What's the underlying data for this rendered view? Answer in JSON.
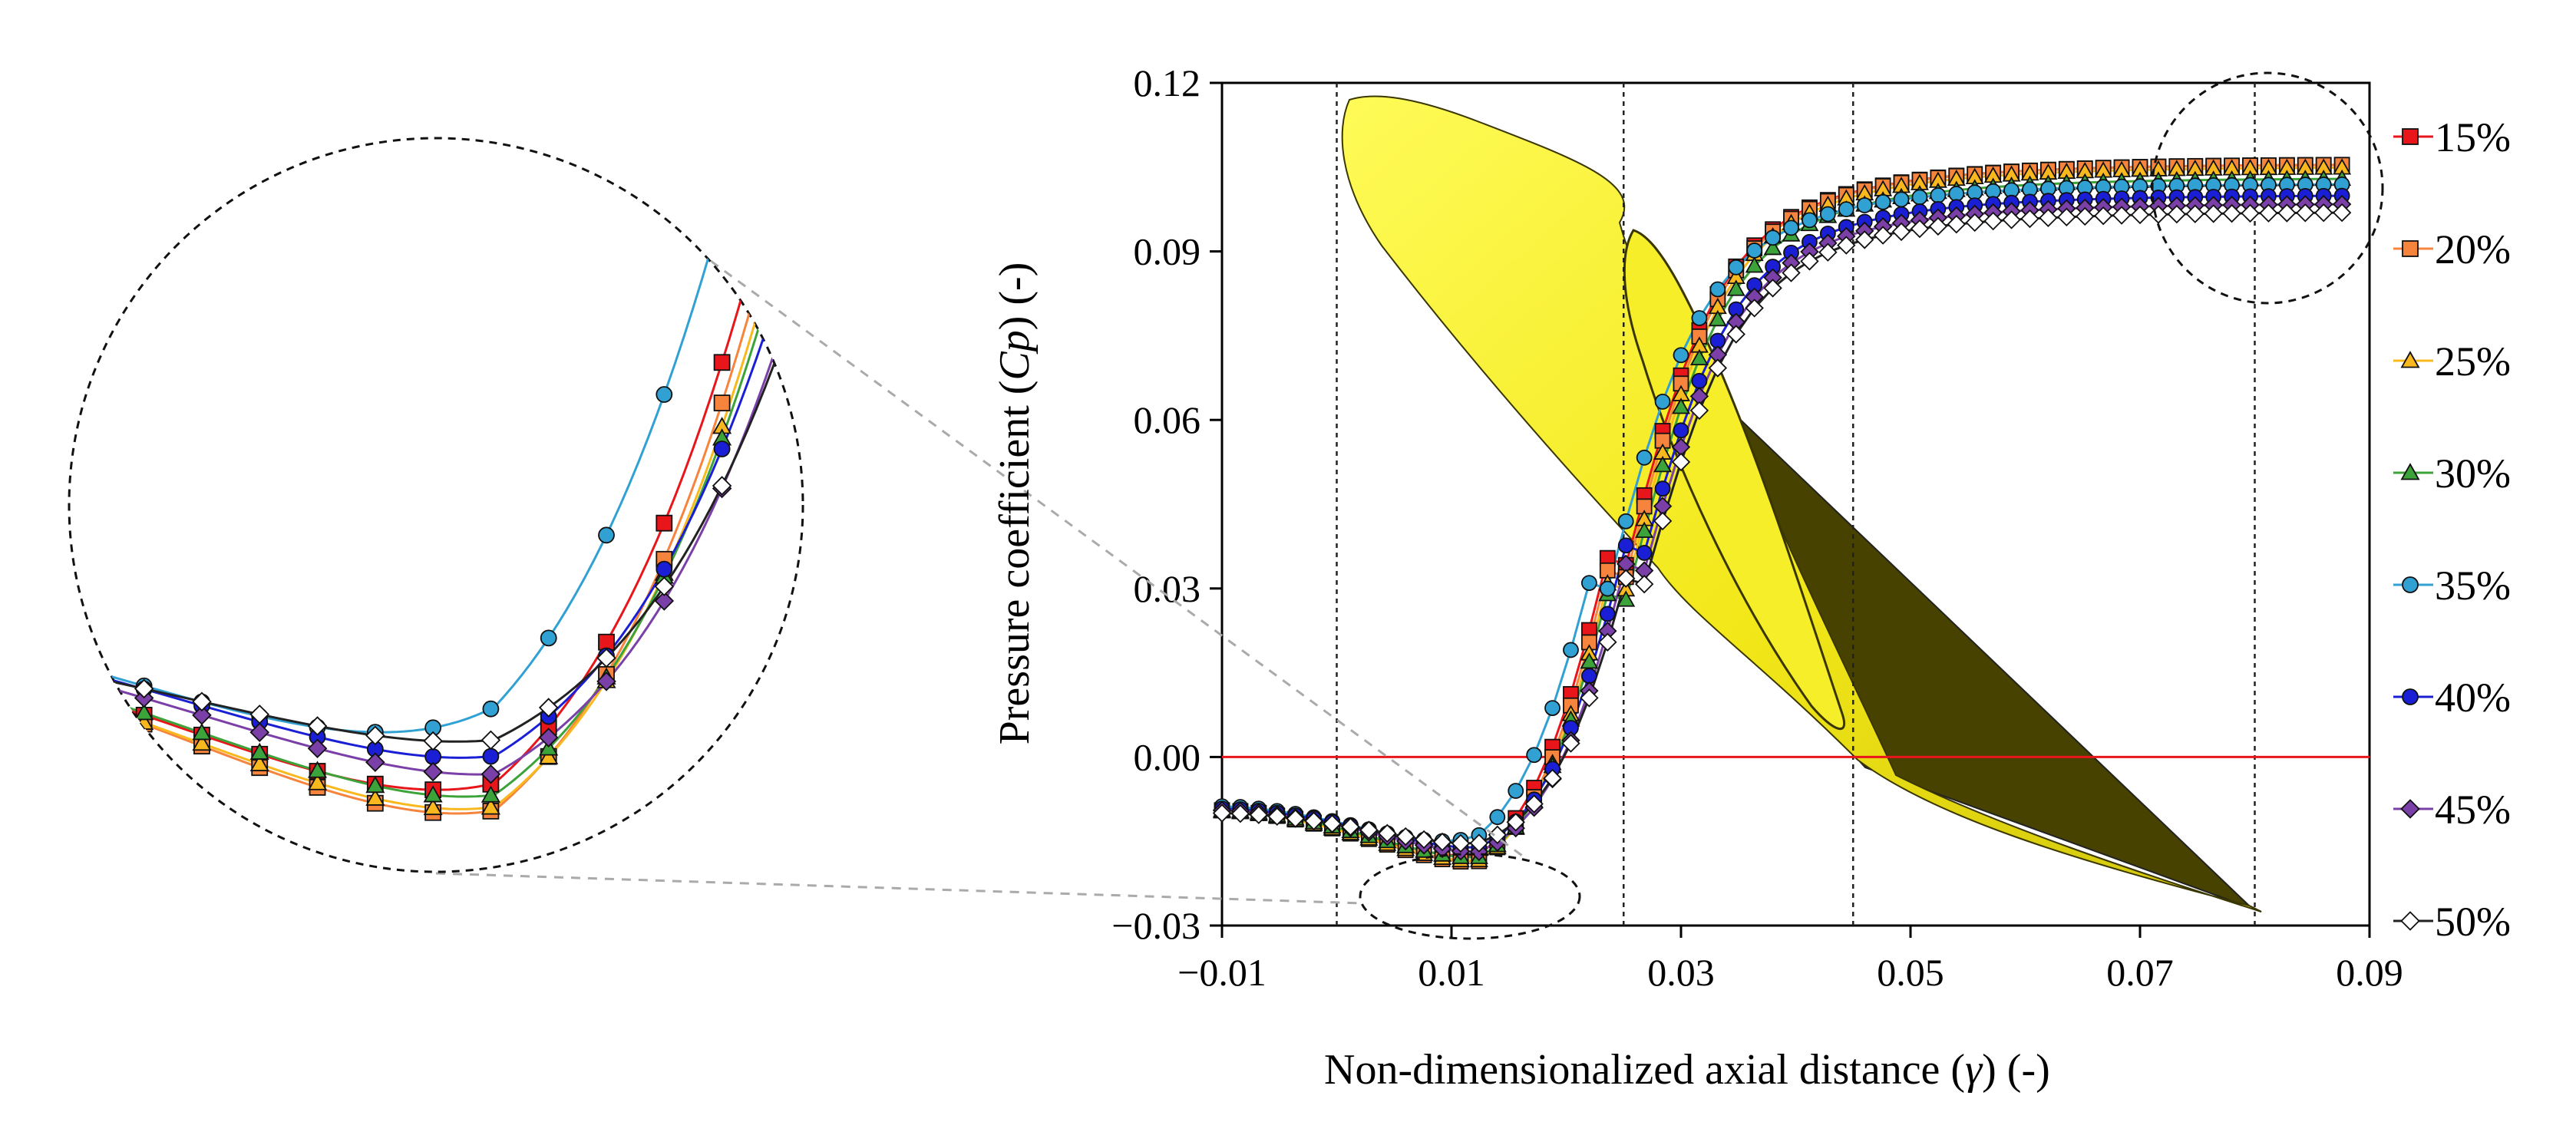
{
  "chart_data": {
    "type": "line",
    "title": "",
    "xlabel": "Non-dimensionalized axial distance (γ) (-)",
    "xlabel_parts": {
      "before": "Non-dimensionalized axial distance (",
      "symbol": "γ",
      "after": ") (-)"
    },
    "ylabel": "Pressure coefficient (Cp) (-)",
    "ylabel_parts": {
      "before": "Pressure coefficient (",
      "symbol": "Cp",
      "after": ") (-)"
    },
    "xlim": [
      -0.01,
      0.09
    ],
    "ylim": [
      -0.03,
      0.12
    ],
    "xticks": [
      -0.01,
      0.01,
      0.03,
      0.05,
      0.07,
      0.09
    ],
    "xtick_labels": [
      "−0.01",
      "0.01",
      "0.03",
      "0.05",
      "0.07",
      "0.09"
    ],
    "yticks": [
      -0.03,
      0.0,
      0.03,
      0.06,
      0.09,
      0.12
    ],
    "ytick_labels": [
      "−0.03",
      "0.00",
      "0.03",
      "0.06",
      "0.09",
      "0.12"
    ],
    "reference_line": {
      "y": 0.0,
      "color": "#e8161b"
    },
    "vertical_guides": [
      0.0,
      0.025,
      0.045,
      0.08
    ],
    "legend_position": "right",
    "x_start": -0.01,
    "x_step": 0.0016,
    "n_points": 62,
    "series": [
      {
        "name": "15%",
        "label": "15%",
        "marker": "square",
        "color": "#e8161b",
        "line_color": "#e8161b",
        "start": -0.0095,
        "drop": 0.0135,
        "tmin": 0.0125,
        "rise_mid": 0.0243,
        "plateau": 0.1055
      },
      {
        "name": "20%",
        "label": "20%",
        "marker": "square",
        "color": "#f6843d",
        "line_color": "#f6843d",
        "start": -0.0095,
        "drop": 0.0145,
        "tmin": 0.0125,
        "rise_mid": 0.0245,
        "plateau": 0.1055
      },
      {
        "name": "25%",
        "label": "25%",
        "marker": "triangle",
        "color": "#f9b81d",
        "line_color": "#f9b81d",
        "start": -0.0097,
        "drop": 0.0137,
        "tmin": 0.0125,
        "rise_mid": 0.0248,
        "plateau": 0.105
      },
      {
        "name": "30%",
        "label": "30%",
        "marker": "triangle",
        "color": "#3ca33a",
        "line_color": "#3ca33a",
        "start": -0.0095,
        "drop": 0.013,
        "tmin": 0.0125,
        "rise_mid": 0.025,
        "plateau": 0.103
      },
      {
        "name": "35%",
        "label": "35%",
        "marker": "circle",
        "color": "#31a1d3",
        "line_color": "#31a1d3",
        "start": -0.0088,
        "drop": 0.0122,
        "tmin": 0.0125,
        "rise_mid": 0.0232,
        "plateau": 0.102
      },
      {
        "name": "40%",
        "label": "40%",
        "marker": "circle",
        "color": "#1a1fd6",
        "line_color": "#1a1fd6",
        "start": -0.0092,
        "drop": 0.0108,
        "tmin": 0.0125,
        "rise_mid": 0.0255,
        "plateau": 0.1
      },
      {
        "name": "45%",
        "label": "45%",
        "marker": "diamond",
        "color": "#7b3fa8",
        "line_color": "#7b3fa8",
        "start": -0.0095,
        "drop": 0.011,
        "tmin": 0.0125,
        "rise_mid": 0.0258,
        "plateau": 0.0985
      },
      {
        "name": "50%",
        "label": "50%",
        "marker": "diamond",
        "color": "#ffffff",
        "line_color": "#222222",
        "start": -0.01,
        "drop": 0.0085,
        "tmin": 0.0125,
        "rise_mid": 0.0262,
        "plateau": 0.097
      }
    ],
    "zoom_inset": {
      "shows": "minimum region around γ = 0.0125",
      "x_range": [
        0.002,
        0.019
      ]
    },
    "background_graphic": "blade profile (yellow) overlaid on plot area"
  }
}
